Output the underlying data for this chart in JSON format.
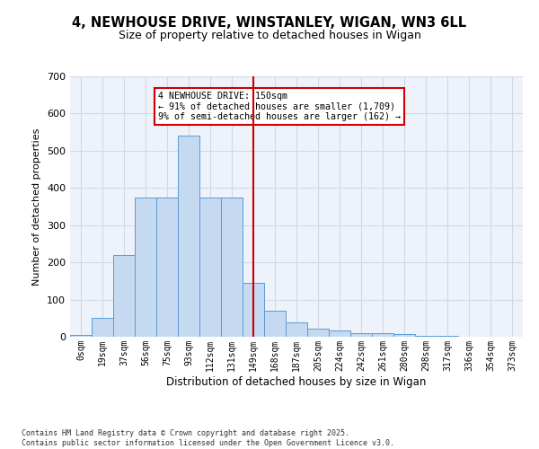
{
  "title_line1": "4, NEWHOUSE DRIVE, WINSTANLEY, WIGAN, WN3 6LL",
  "title_line2": "Size of property relative to detached houses in Wigan",
  "xlabel": "Distribution of detached houses by size in Wigan",
  "ylabel": "Number of detached properties",
  "bins": [
    "0sqm",
    "19sqm",
    "37sqm",
    "56sqm",
    "75sqm",
    "93sqm",
    "112sqm",
    "131sqm",
    "149sqm",
    "168sqm",
    "187sqm",
    "205sqm",
    "224sqm",
    "242sqm",
    "261sqm",
    "280sqm",
    "298sqm",
    "317sqm",
    "336sqm",
    "354sqm",
    "373sqm"
  ],
  "bar_heights": [
    5,
    50,
    220,
    375,
    375,
    540,
    375,
    375,
    145,
    70,
    38,
    22,
    17,
    10,
    10,
    8,
    3,
    2,
    1,
    0,
    0
  ],
  "bar_color": "#c5d9f0",
  "bar_edge_color": "#5b9bd5",
  "grid_color": "#d0d8e8",
  "background_color": "#eef2fa",
  "vline_bin_index": 8,
  "vline_color": "#cc0000",
  "annotation_text": "4 NEWHOUSE DRIVE: 150sqm\n← 91% of detached houses are smaller (1,709)\n9% of semi-detached houses are larger (162) →",
  "annotation_box_color": "#cc0000",
  "ylim": [
    0,
    700
  ],
  "yticks": [
    0,
    100,
    200,
    300,
    400,
    500,
    600,
    700
  ],
  "footer_line1": "Contains HM Land Registry data © Crown copyright and database right 2025.",
  "footer_line2": "Contains public sector information licensed under the Open Government Licence v3.0."
}
